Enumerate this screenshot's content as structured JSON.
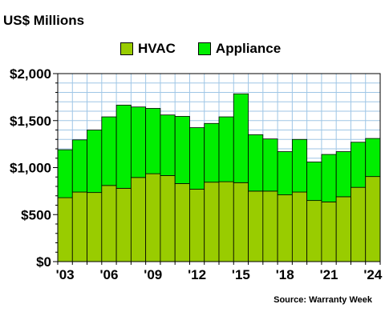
{
  "chart_data": {
    "type": "bar",
    "stacked": true,
    "unit_label": "US$ Millions",
    "source": "Source: Warranty Week",
    "categories": [
      "2003",
      "2004",
      "2005",
      "2006",
      "2007",
      "2008",
      "2009",
      "2010",
      "2011",
      "2012",
      "2013",
      "2014",
      "2015",
      "2016",
      "2017",
      "2018",
      "2019",
      "2020",
      "2021",
      "2022",
      "2023",
      "2024"
    ],
    "x_tick_labels": [
      "'03",
      "'06",
      "'09",
      "'12",
      "'15",
      "'18",
      "'21",
      "'24"
    ],
    "x_tick_every": 3,
    "series": [
      {
        "name": "HVAC",
        "color": "#99cc00",
        "values": [
          680,
          740,
          735,
          810,
          780,
          895,
          935,
          915,
          830,
          770,
          845,
          850,
          840,
          750,
          750,
          710,
          740,
          650,
          635,
          690,
          790,
          905
        ]
      },
      {
        "name": "Appliance",
        "color": "#00ee00",
        "values": [
          510,
          555,
          665,
          730,
          885,
          750,
          695,
          645,
          715,
          655,
          625,
          690,
          945,
          600,
          555,
          460,
          560,
          410,
          505,
          480,
          480,
          405
        ]
      }
    ],
    "y_ticks": [
      "$0",
      "$500",
      "$1,000",
      "$1,500",
      "$2,000"
    ],
    "ylim": [
      0,
      2000
    ],
    "grid": true,
    "legend_position": "top"
  }
}
